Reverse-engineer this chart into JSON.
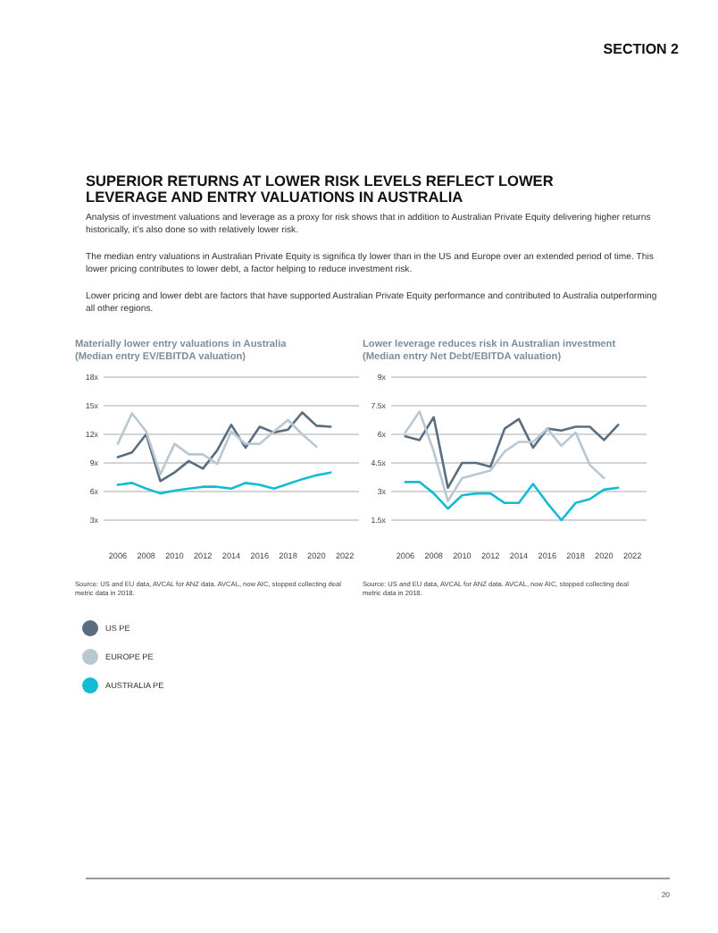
{
  "chart_data": [
    {
      "type": "other",
      "title": "SUPERIOR RETURNS AT LOWER RISK LEVELS REFLECT LOWER LEVERAGE AND ENTRY VALUATIONS IN AUSTRALIA",
      "annotations": [
        "SECTION 2",
        "Analysis of investment valuations and leverage as a proxy for risk shows that in addition to Australian Private Equity delivering higher returns historically, it’s also done so with relatively lower risk.",
        "The median entry valuations in Australian Private Equity is significa  tly lower than in the US and Europe over an extended period of time. This lower pricing contributes to lower debt, a factor helping to reduce investment risk.",
        "Lower pricing and lower debt are factors that have supported Australian Private Equity performance and contributed to Australia outperforming all other regions.",
        "20"
      ]
    },
    {
      "type": "line",
      "title": "Materially lower entry valuations in Australia",
      "subtitle": "(Median entry EV/EBITDA valuation)",
      "x": [
        2006,
        2007,
        2008,
        2009,
        2010,
        2011,
        2012,
        2013,
        2014,
        2015,
        2016,
        2017,
        2018,
        2019,
        2020,
        2021
      ],
      "xlim": [
        2005,
        2023
      ],
      "xticks": [
        2006,
        2008,
        2010,
        2012,
        2014,
        2016,
        2018,
        2020,
        2022
      ],
      "ylim": [
        3,
        18
      ],
      "yticks": [
        {
          "value": 3,
          "label": "3x"
        },
        {
          "value": 6,
          "label": "6x"
        },
        {
          "value": 9,
          "label": "9x"
        },
        {
          "value": 12,
          "label": "12x"
        },
        {
          "value": 15,
          "label": "15x"
        },
        {
          "value": 18,
          "label": "18x"
        }
      ],
      "grid": "y",
      "legend": "bottom",
      "marker": "none",
      "line_style": "solid",
      "series": [
        {
          "name": "US PE",
          "color": "#5a6e80",
          "values": [
            9.6,
            10.1,
            12,
            7.1,
            8,
            9.2,
            8.4,
            10.3,
            13,
            10.6,
            12.8,
            12.2,
            12.5,
            14.3,
            12.9,
            12.8
          ]
        },
        {
          "name": "EUROPE PE",
          "color": "#b8c8d2",
          "values": [
            11,
            14.2,
            12.3,
            7.8,
            11,
            9.9,
            9.9,
            8.9,
            12.3,
            11,
            11,
            12.3,
            13.5,
            12,
            10.7,
            null
          ]
        },
        {
          "name": "AUSTRALIA PE",
          "color": "#12bcd4",
          "values": [
            6.7,
            6.9,
            6.3,
            5.8,
            6.1,
            6.3,
            6.5,
            6.5,
            6.3,
            6.9,
            6.7,
            6.3,
            6.8,
            7.3,
            7.7,
            8
          ]
        }
      ],
      "annotations": [
        "Source: US and EU data, AVCAL for ANZ data. AVCAL, now AIC, stopped collecting deal metric data in 2018."
      ]
    },
    {
      "type": "line",
      "title": "Lower leverage reduces risk in Australian investment",
      "subtitle": "(Median entry Net Debt/EBITDA valuation)",
      "x": [
        2006,
        2007,
        2008,
        2009,
        2010,
        2011,
        2012,
        2013,
        2014,
        2015,
        2016,
        2017,
        2018,
        2019,
        2020,
        2021
      ],
      "xlim": [
        2005,
        2023
      ],
      "xticks": [
        2006,
        2008,
        2010,
        2012,
        2014,
        2016,
        2018,
        2020,
        2022
      ],
      "ylim": [
        1.5,
        9
      ],
      "yticks": [
        {
          "value": 1.5,
          "label": "1.5x"
        },
        {
          "value": 3,
          "label": "3x"
        },
        {
          "value": 4.5,
          "label": "4.5x"
        },
        {
          "value": 6,
          "label": "6x"
        },
        {
          "value": 7.5,
          "label": "7.5x"
        },
        {
          "value": 9,
          "label": "9x"
        }
      ],
      "grid": "y",
      "marker": "none",
      "line_style": "solid",
      "series": [
        {
          "color": "#5a6e80",
          "values": [
            5.9,
            5.7,
            6.9,
            3.2,
            4.5,
            4.5,
            4.3,
            6.3,
            6.8,
            5.3,
            6.3,
            6.2,
            6.4,
            6.4,
            5.7,
            6.5
          ]
        },
        {
          "color": "#b8c8d2",
          "values": [
            6.1,
            7.2,
            5.1,
            2.5,
            3.7,
            3.9,
            4.1,
            5.1,
            5.6,
            5.6,
            6.3,
            5.4,
            6.1,
            4.4,
            3.7,
            null
          ]
        },
        {
          "color": "#12bcd4",
          "values": [
            3.5,
            3.5,
            2.9,
            2.1,
            2.8,
            2.9,
            2.9,
            2.4,
            2.4,
            3.4,
            2.4,
            1.5,
            2.4,
            2.6,
            3.1,
            3.2
          ]
        }
      ],
      "annotations": [
        "Source: US and EU data, AVCAL for ANZ data. AVCAL, now AIC, stopped collecting deal metric data in 2018."
      ]
    }
  ]
}
